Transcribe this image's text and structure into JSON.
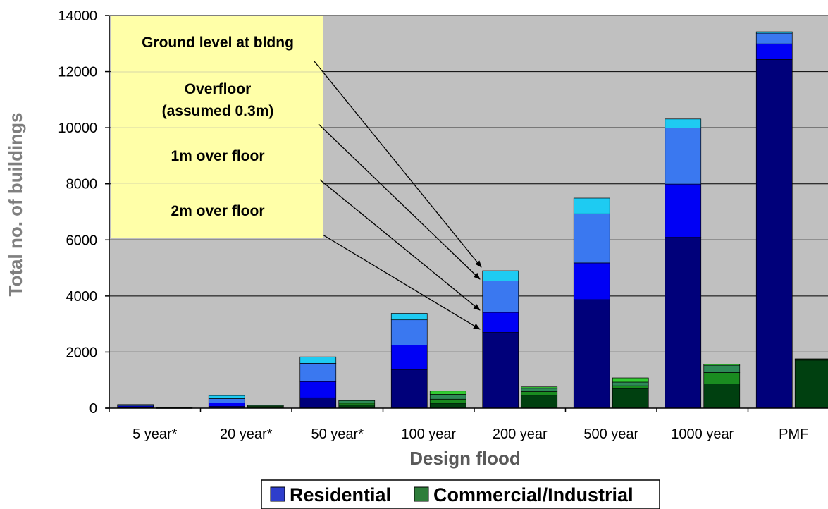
{
  "chart_data": {
    "type": "bar",
    "stacked": true,
    "xlabel": "Design flood",
    "ylabel": "Total no. of buildings",
    "ylim": [
      0,
      14000
    ],
    "yticks": [
      0,
      2000,
      4000,
      6000,
      8000,
      10000,
      12000,
      14000
    ],
    "grid": true,
    "categories": [
      "5 year*",
      "20 year*",
      "50 year*",
      "100 year",
      "200 year",
      "500 year",
      "1000 year",
      "PMF"
    ],
    "stack_levels": [
      "2m over floor",
      "1m over floor",
      "Overfloor (assumed 0.3m)",
      "Ground level at bldng"
    ],
    "key_labels": [
      "Ground level at bldng",
      "Overfloor",
      "(assumed 0.3m)",
      "1m over floor",
      "2m over floor"
    ],
    "groups": [
      {
        "name": "Residential",
        "color": "#2e3ecc",
        "level_colors": [
          "#00007a",
          "#0000f5",
          "#3a78f0",
          "#1ecbf2"
        ],
        "values": [
          [
            20,
            60,
            50,
            0
          ],
          [
            60,
            130,
            150,
            110
          ],
          [
            370,
            580,
            650,
            230
          ],
          [
            1380,
            870,
            900,
            230
          ],
          [
            2700,
            720,
            1120,
            360
          ],
          [
            3870,
            1310,
            1750,
            560
          ],
          [
            6090,
            1900,
            2000,
            320
          ],
          [
            12430,
            560,
            380,
            50
          ]
        ]
      },
      {
        "name": "Commercial/Industrial",
        "color": "#2e7d3a",
        "level_colors": [
          "#004010",
          "#1a8c20",
          "#2e8b57",
          "#33cc33"
        ],
        "values": [
          [
            10,
            10,
            10,
            0
          ],
          [
            40,
            30,
            30,
            0
          ],
          [
            120,
            60,
            90,
            0
          ],
          [
            180,
            140,
            170,
            120
          ],
          [
            460,
            130,
            120,
            50
          ],
          [
            700,
            100,
            130,
            150
          ],
          [
            870,
            400,
            260,
            40
          ],
          [
            1720,
            10,
            10,
            20
          ]
        ]
      }
    ],
    "legend": [
      "Residential",
      "Commercial/Industrial"
    ],
    "legend_position": "bottom"
  }
}
